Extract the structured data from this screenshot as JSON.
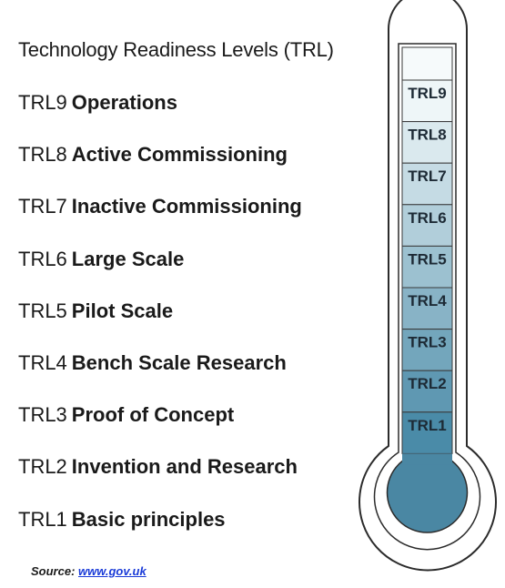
{
  "title": "Technology Readiness Levels (TRL)",
  "levels": [
    {
      "code": "TRL9",
      "name": "Operations"
    },
    {
      "code": "TRL8",
      "name": "Active Commissioning"
    },
    {
      "code": "TRL7",
      "name": "Inactive Commissioning"
    },
    {
      "code": "TRL6",
      "name": "Large Scale"
    },
    {
      "code": "TRL5",
      "name": "Pilot Scale"
    },
    {
      "code": "TRL4",
      "name": "Bench Scale Research"
    },
    {
      "code": "TRL3",
      "name": "Proof of Concept"
    },
    {
      "code": "TRL2",
      "name": "Invention and Research"
    },
    {
      "code": "TRL1",
      "name": "Basic principles"
    }
  ],
  "thermometer": {
    "segments": [
      "TRL9",
      "TRL8",
      "TRL7",
      "TRL6",
      "TRL5",
      "TRL4",
      "TRL3",
      "TRL2",
      "TRL1"
    ],
    "colors": {
      "top": "#eef6f8",
      "bottom": "#4a8ba8",
      "bulb": "#4a87a3",
      "outline": "#2b2b2b"
    }
  },
  "source": {
    "label": "Source:",
    "link_text": "www.gov.uk"
  }
}
